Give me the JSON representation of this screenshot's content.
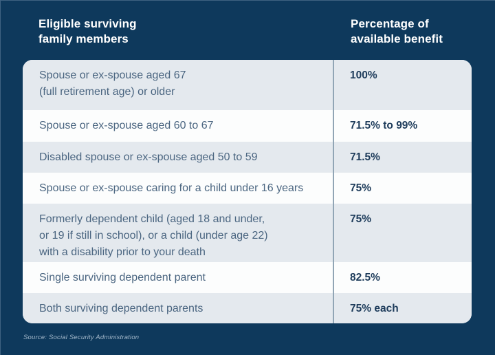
{
  "header": {
    "left_title": "Eligible surviving\nfamily members",
    "right_title": "Percentage of\navailable benefit"
  },
  "table": {
    "rows": [
      {
        "member": "Spouse or ex-spouse aged 67\n(full retirement age) or older",
        "benefit": "100%"
      },
      {
        "member": "Spouse or ex-spouse aged 60 to 67",
        "benefit": "71.5% to 99%"
      },
      {
        "member": "Disabled spouse or ex-spouse aged 50 to 59",
        "benefit": "71.5%"
      },
      {
        "member": "Spouse or ex-spouse caring for a child under 16 years",
        "benefit": "75%"
      },
      {
        "member": "Formerly dependent child (aged 18 and under,\nor 19 if still in school), or a child (under age 22)\nwith a disability prior to your death",
        "benefit": "75%"
      },
      {
        "member": "Single surviving dependent parent",
        "benefit": "82.5%"
      },
      {
        "member": "Both surviving dependent parents",
        "benefit": "75% each"
      }
    ]
  },
  "footer": {
    "source": "Source: Social Security Administration"
  },
  "colors": {
    "background": "#0E395C",
    "row_shaded": "#E4E9EE",
    "row_plain": "#FCFDFD",
    "divider": "#91A5B5",
    "member_text": "#4A6580",
    "benefit_text": "#1E3C5B",
    "header_text": "#FFFFFF",
    "source_text": "#A3B8CA"
  },
  "chart_data": {
    "type": "table",
    "title": "Survivor benefits by eligible family member",
    "columns": [
      "Eligible surviving family members",
      "Percentage of available benefit"
    ],
    "rows": [
      [
        "Spouse or ex-spouse aged 67 (full retirement age) or older",
        "100%"
      ],
      [
        "Spouse or ex-spouse aged 60 to 67",
        "71.5% to 99%"
      ],
      [
        "Disabled spouse or ex-spouse aged 50 to 59",
        "71.5%"
      ],
      [
        "Spouse or ex-spouse caring for a child under 16 years",
        "75%"
      ],
      [
        "Formerly dependent child (aged 18 and under, or 19 if still in school), or a child (under age 22) with a disability prior to your death",
        "75%"
      ],
      [
        "Single surviving dependent parent",
        "82.5%"
      ],
      [
        "Both surviving dependent parents",
        "75% each"
      ]
    ],
    "layout_hints": {
      "striped_rows": "odd rows shaded light blue-gray",
      "column_divider": true,
      "source_note": "Source: Social Security Administration"
    }
  }
}
